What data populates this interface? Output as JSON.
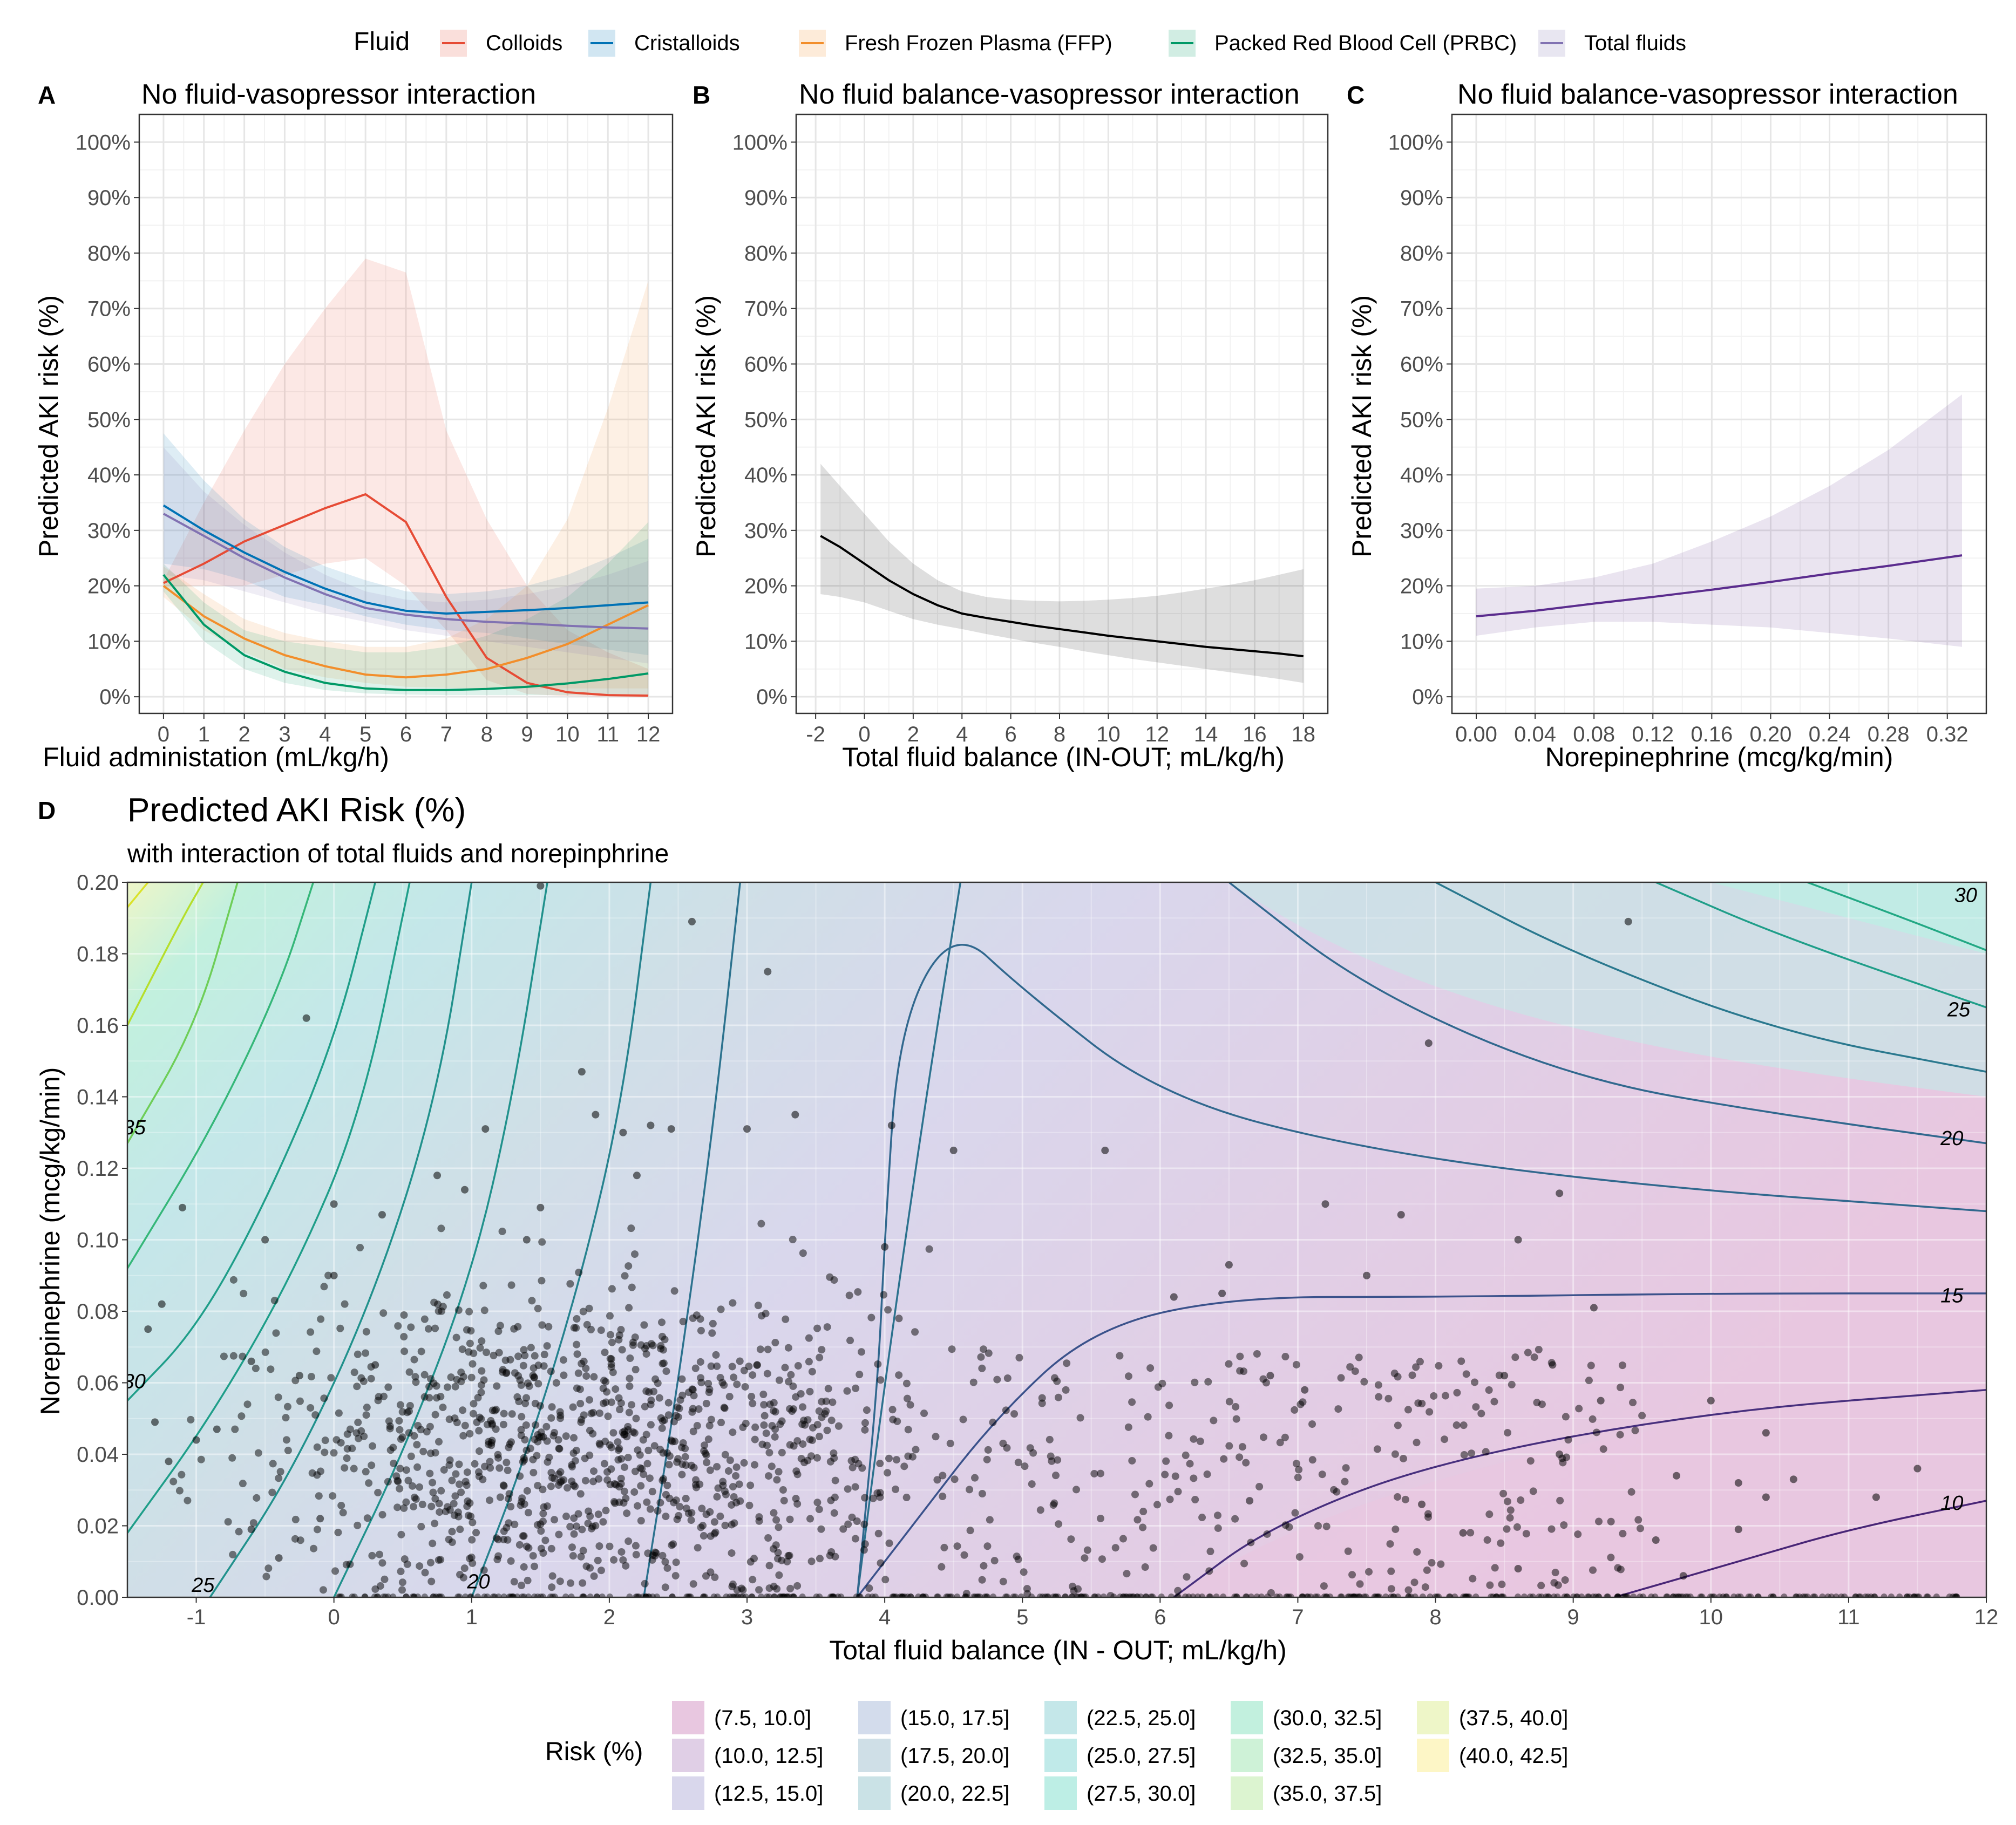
{
  "legend_top": {
    "title": "Fluid",
    "items": [
      {
        "label": "Colloids",
        "color": "#E64B35"
      },
      {
        "label": "Cristalloids",
        "color": "#0072B5"
      },
      {
        "label": "Fresh Frozen Plasma (FFP)",
        "color": "#F28E2B"
      },
      {
        "label": "Packed Red Blood Cell (PRBC)",
        "color": "#009966"
      },
      {
        "label": "Total fluids",
        "color": "#8172B2"
      }
    ]
  },
  "legend_bottom": {
    "title": "Risk (%)",
    "items": [
      {
        "label": "(7.5, 10.0]",
        "color": "#e8c7e0"
      },
      {
        "label": "(10.0, 12.5]",
        "color": "#e0cfe6"
      },
      {
        "label": "(12.5, 15.0]",
        "color": "#d9d7ec"
      },
      {
        "label": "(15.0, 17.5]",
        "color": "#d3dcec"
      },
      {
        "label": "(17.5, 20.0]",
        "color": "#cfdfe7"
      },
      {
        "label": "(20.0, 22.5]",
        "color": "#cae2e6"
      },
      {
        "label": "(22.5, 25.0]",
        "color": "#c4e7e9"
      },
      {
        "label": "(25.0, 27.5]",
        "color": "#c0eae9"
      },
      {
        "label": "(27.5, 30.0]",
        "color": "#bdeee5"
      },
      {
        "label": "(30.0, 32.5]",
        "color": "#c2f0de"
      },
      {
        "label": "(32.5, 35.0]",
        "color": "#cef2d7"
      },
      {
        "label": "(35.0, 37.5]",
        "color": "#dcf4d0"
      },
      {
        "label": "(37.5, 40.0]",
        "color": "#eef6c8"
      },
      {
        "label": "(40.0, 42.5]",
        "color": "#fdf6c6"
      }
    ]
  },
  "chart_data": [
    {
      "id": "A",
      "type": "line",
      "panel_letter": "A",
      "title": "No fluid-vasopressor interaction",
      "xlabel": "Fluid administation (mL/kg/h)",
      "ylabel": "Predicted AKI risk (%)",
      "xlim": [
        -0.6,
        12.6
      ],
      "ylim": [
        -3,
        105
      ],
      "xticks": [
        0,
        1,
        2,
        3,
        4,
        5,
        6,
        7,
        8,
        9,
        10,
        11,
        12
      ],
      "yticks": [
        0,
        10,
        20,
        30,
        40,
        50,
        60,
        70,
        80,
        90,
        100
      ],
      "ytick_suffix": "%",
      "series": [
        {
          "name": "Colloids",
          "color": "#E64B35",
          "x": [
            0,
            1,
            2,
            3,
            4,
            5,
            6,
            7,
            8,
            9,
            10,
            11,
            12
          ],
          "y": [
            20.5,
            24,
            28,
            31,
            34,
            36.5,
            31.5,
            18,
            7,
            2.5,
            0.8,
            0.3,
            0.2
          ],
          "lower": [
            20,
            20,
            20,
            22,
            24,
            25,
            20,
            12,
            3,
            0.5,
            0.1,
            0,
            0
          ],
          "upper": [
            21,
            35,
            48,
            60,
            70,
            79,
            76.5,
            48,
            32,
            20,
            12,
            8,
            5
          ]
        },
        {
          "name": "Cristalloids",
          "color": "#0072B5",
          "x": [
            0,
            1,
            2,
            3,
            4,
            5,
            6,
            7,
            8,
            9,
            10,
            11,
            12
          ],
          "y": [
            34.5,
            30,
            26,
            22.5,
            19.5,
            17,
            15.5,
            15,
            15.3,
            15.6,
            16,
            16.5,
            17
          ],
          "lower": [
            24,
            23,
            21,
            18,
            16.5,
            14.5,
            13,
            12,
            11.5,
            10.5,
            9.5,
            8.5,
            7.5
          ],
          "upper": [
            47.5,
            39,
            32,
            27,
            23.5,
            21,
            19,
            18.5,
            19,
            20,
            22,
            25,
            28.5
          ]
        },
        {
          "name": "Fresh Frozen Plasma (FFP)",
          "color": "#F28E2B",
          "x": [
            0,
            1,
            2,
            3,
            4,
            5,
            6,
            7,
            8,
            9,
            10,
            11,
            12
          ],
          "y": [
            20,
            14.5,
            10.5,
            7.5,
            5.5,
            4,
            3.5,
            4,
            5,
            7,
            9.5,
            13,
            16.5
          ],
          "lower": [
            18,
            12,
            8,
            5,
            3.5,
            2.5,
            1.8,
            1.6,
            1.5,
            1.5,
            1.5,
            1.5,
            1.5
          ],
          "upper": [
            23.5,
            18.5,
            14,
            11.5,
            10,
            9,
            9,
            10.5,
            14,
            20,
            32,
            52,
            75
          ]
        },
        {
          "name": "Packed Red Blood Cell (PRBC)",
          "color": "#009966",
          "x": [
            0,
            1,
            2,
            3,
            4,
            5,
            6,
            7,
            8,
            9,
            10,
            11,
            12
          ],
          "y": [
            22,
            13,
            7.5,
            4.5,
            2.5,
            1.5,
            1.2,
            1.2,
            1.4,
            1.8,
            2.4,
            3.2,
            4.2
          ],
          "lower": [
            19,
            10,
            5,
            2.5,
            1.2,
            0.6,
            0.4,
            0.3,
            0.3,
            0.3,
            0.3,
            0.3,
            0.3
          ],
          "upper": [
            24,
            17,
            12,
            10,
            9,
            8,
            8,
            9,
            11,
            14,
            18,
            24,
            31.5
          ]
        },
        {
          "name": "Total fluids",
          "color": "#8172B2",
          "x": [
            0,
            1,
            2,
            3,
            4,
            5,
            6,
            7,
            8,
            9,
            10,
            11,
            12
          ],
          "y": [
            33,
            29,
            25,
            21.5,
            18.5,
            16,
            14.8,
            14,
            13.5,
            13.2,
            12.8,
            12.5,
            12.3
          ],
          "lower": [
            22,
            21,
            19,
            17,
            15,
            13.5,
            12,
            11,
            10,
            9,
            8,
            7,
            6
          ],
          "upper": [
            45,
            37,
            31,
            26,
            22,
            19,
            17.5,
            17,
            17.5,
            18.5,
            20,
            22,
            24.5
          ]
        }
      ]
    },
    {
      "id": "B",
      "type": "line",
      "panel_letter": "B",
      "title": "No fluid balance-vasopressor interaction",
      "xlabel": "Total fluid balance (IN-OUT; mL/kg/h)",
      "ylabel": "Predicted AKI risk (%)",
      "xlim": [
        -2.8,
        19
      ],
      "ylim": [
        -3,
        105
      ],
      "xticks": [
        -2,
        0,
        2,
        4,
        6,
        8,
        10,
        12,
        14,
        16,
        18
      ],
      "yticks": [
        0,
        10,
        20,
        30,
        40,
        50,
        60,
        70,
        80,
        90,
        100
      ],
      "ytick_suffix": "%",
      "series": [
        {
          "name": "Total fluid balance",
          "color": "#000000",
          "x": [
            -1.8,
            -1,
            0,
            1,
            2,
            3,
            4,
            5,
            6,
            7,
            8,
            9,
            10,
            11,
            12,
            13,
            14,
            15,
            16,
            17,
            18
          ],
          "y": [
            29,
            27,
            24,
            21,
            18.5,
            16.5,
            15,
            14.2,
            13.5,
            12.8,
            12.2,
            11.6,
            11,
            10.5,
            10,
            9.5,
            9,
            8.6,
            8.2,
            7.8,
            7.3
          ],
          "lower": [
            18.5,
            18,
            17,
            15.5,
            14,
            13,
            12.2,
            11.3,
            10.5,
            9.7,
            9,
            8.2,
            7.5,
            6.8,
            6.2,
            5.6,
            5,
            4.4,
            3.8,
            3.2,
            2.5
          ],
          "upper": [
            42,
            38,
            33,
            28,
            24,
            21,
            19,
            18,
            17.5,
            17.3,
            17.2,
            17.3,
            17.5,
            17.8,
            18.2,
            18.8,
            19.5,
            20.2,
            21,
            22,
            23
          ]
        }
      ]
    },
    {
      "id": "C",
      "type": "line",
      "panel_letter": "C",
      "title": "No fluid balance-vasopressor interaction",
      "xlabel": "Norepinephrine (mcg/kg/min)",
      "ylabel": "Predicted AKI risk (%)",
      "xlim": [
        -0.0165,
        0.3465
      ],
      "ylim": [
        -3,
        105
      ],
      "xticks": [
        0.0,
        0.04,
        0.08,
        0.12,
        0.16,
        0.2,
        0.24,
        0.28,
        0.32
      ],
      "xtick_labels": [
        "0.00",
        "0.04",
        "0.08",
        "0.12",
        "0.16",
        "0.20",
        "0.24",
        "0.28",
        "0.32"
      ],
      "yticks": [
        0,
        10,
        20,
        30,
        40,
        50,
        60,
        70,
        80,
        90,
        100
      ],
      "ytick_suffix": "%",
      "series": [
        {
          "name": "Norepinephrine",
          "color": "#5B2C8E",
          "x": [
            0,
            0.04,
            0.08,
            0.12,
            0.16,
            0.2,
            0.24,
            0.28,
            0.33
          ],
          "y": [
            14.5,
            15.5,
            16.8,
            18,
            19.3,
            20.7,
            22.2,
            23.6,
            25.5
          ],
          "lower": [
            11,
            12.5,
            13.5,
            13.5,
            13,
            12.5,
            11.5,
            10.5,
            9
          ],
          "upper": [
            19.5,
            20,
            21.5,
            24,
            28,
            32.5,
            38,
            44.5,
            54.5
          ]
        }
      ]
    },
    {
      "id": "D",
      "type": "heatmap",
      "panel_letter": "D",
      "title": "Predicted AKI Risk (%)",
      "subtitle": "with interaction of total fluids and norepinphrine",
      "xlabel": "Total fluid balance (IN - OUT; mL/kg/h)",
      "ylabel": "Norepinephrine (mcg/kg/min)",
      "xlim": [
        -1.5,
        12
      ],
      "ylim": [
        0,
        0.2
      ],
      "xticks": [
        -1,
        0,
        1,
        2,
        3,
        4,
        5,
        6,
        7,
        8,
        9,
        10,
        11,
        12
      ],
      "yticks": [
        0,
        0.02,
        0.04,
        0.06,
        0.08,
        0.1,
        0.12,
        0.14,
        0.16,
        0.18,
        0.2
      ],
      "ytick_labels": [
        "0.00",
        "0.02",
        "0.04",
        "0.06",
        "0.08",
        "0.10",
        "0.12",
        "0.14",
        "0.16",
        "0.18",
        "0.20"
      ],
      "contour_labels": [
        {
          "text": "35",
          "x": -1.45,
          "y": 0.131
        },
        {
          "text": "30",
          "x": -1.45,
          "y": 0.06
        },
        {
          "text": "25",
          "x": -0.95,
          "y": 0.003
        },
        {
          "text": "20",
          "x": 1.05,
          "y": 0.004
        },
        {
          "text": "30",
          "x": 11.85,
          "y": 0.196
        },
        {
          "text": "25",
          "x": 11.8,
          "y": 0.164
        },
        {
          "text": "20",
          "x": 11.75,
          "y": 0.128
        },
        {
          "text": "15",
          "x": 11.75,
          "y": 0.084
        },
        {
          "text": "10",
          "x": 11.75,
          "y": 0.026
        }
      ],
      "points": [
        [
          1.5,
          0.199
        ],
        [
          2.6,
          0.189
        ],
        [
          3.15,
          0.175
        ],
        [
          -0.2,
          0.162
        ],
        [
          1.8,
          0.147
        ],
        [
          7.95,
          0.155
        ],
        [
          9.4,
          0.189
        ],
        [
          1.9,
          0.135
        ],
        [
          2.1,
          0.13
        ],
        [
          2.3,
          0.132
        ],
        [
          2.45,
          0.131
        ],
        [
          3,
          0.131
        ],
        [
          3.35,
          0.135
        ],
        [
          4.05,
          0.132
        ],
        [
          4.5,
          0.125
        ],
        [
          5.6,
          0.125
        ],
        [
          1.1,
          0.131
        ],
        [
          0.75,
          0.118
        ],
        [
          0.95,
          0.114
        ],
        [
          1.5,
          0.109
        ],
        [
          2.2,
          0.118
        ],
        [
          -1.1,
          0.109
        ],
        [
          0,
          0.11
        ],
        [
          0.35,
          0.107
        ],
        [
          -0.5,
          0.1
        ],
        [
          1.4,
          0.1
        ],
        [
          4,
          0.098
        ],
        [
          6.5,
          0.093
        ],
        [
          7.2,
          0.11
        ],
        [
          7.75,
          0.107
        ],
        [
          8.6,
          0.1
        ],
        [
          8.9,
          0.113
        ],
        [
          9.15,
          0.081
        ],
        [
          7.5,
          0.09
        ],
        [
          6.1,
          0.084
        ],
        [
          6.45,
          0.085
        ],
        [
          -1.25,
          0.082
        ],
        [
          -1.35,
          0.075
        ],
        [
          -0.6,
          0.066
        ],
        [
          -0.25,
          0.062
        ],
        [
          0,
          0.09
        ],
        [
          0.3,
          0.065
        ],
        [
          6.8,
          0.062
        ],
        [
          7.05,
          0.058
        ],
        [
          8.5,
          0.062
        ],
        [
          8.85,
          0.065
        ],
        [
          9.2,
          0.055
        ],
        [
          10.0,
          0.055
        ],
        [
          10.4,
          0.046
        ],
        [
          11.5,
          0.036
        ],
        [
          10.6,
          0.033
        ],
        [
          10.2,
          0.032
        ],
        [
          10.4,
          0.028
        ],
        [
          11.2,
          0.028
        ],
        [
          9.75,
          0.034
        ],
        [
          8.9,
          0.04
        ],
        [
          8.2,
          0.018
        ],
        [
          9.6,
          0.016
        ],
        [
          10.2,
          0.019
        ],
        [
          6.65,
          0.027
        ],
        [
          7.9,
          0.026
        ],
        [
          8.6,
          0.008
        ],
        [
          9.8,
          0.006
        ],
        [
          -1.3,
          0.049
        ],
        [
          -0.85,
          0.047
        ],
        [
          -1.2,
          0.038
        ],
        [
          -1.0,
          0.044
        ],
        [
          -0.6,
          0.019
        ],
        [
          -0.4,
          0.011
        ],
        [
          -0.1,
          0.022
        ]
      ],
      "point_color": "#000000"
    }
  ]
}
